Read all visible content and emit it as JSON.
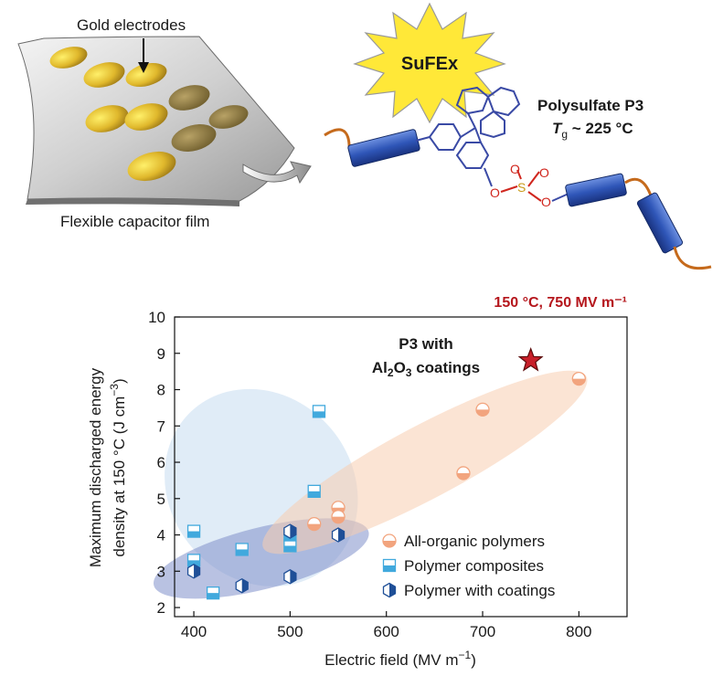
{
  "illustration": {
    "electrode_label": "Gold electrodes",
    "film_label": "Flexible capacitor film",
    "reaction_label": "SuFEx",
    "polymer_name": "Polysulfate P3",
    "tg_symbol": "T",
    "tg_subscript": "g",
    "tg_value": " ~ 225 °C",
    "atom_O": "O",
    "atom_S": "S"
  },
  "chart_data": {
    "type": "scatter",
    "condition_label": "150 °C, 750 MV m⁻¹",
    "xlabel": "Electric field (MV m⁻¹)",
    "ylabel_line1": "Maximum discharged energy",
    "ylabel_line2": "density at 150 °C (J cm⁻³)",
    "xlim": [
      380,
      850
    ],
    "ylim": [
      1.75,
      10
    ],
    "xticks": [
      400,
      500,
      600,
      700,
      800
    ],
    "yticks": [
      2,
      3,
      4,
      5,
      6,
      7,
      8,
      9,
      10
    ],
    "highlight": {
      "label_line1": "P3 with",
      "label_line2": "Al₂O₃ coatings",
      "x": 750,
      "y": 8.8,
      "color": "#c8202a"
    },
    "series": [
      {
        "name": "All-organic polymers",
        "marker": "circle-half",
        "color": "#f2a47e",
        "points": [
          [
            525,
            4.3
          ],
          [
            550,
            4.75
          ],
          [
            550,
            4.5
          ],
          [
            680,
            5.7
          ],
          [
            700,
            7.45
          ],
          [
            800,
            8.3
          ]
        ]
      },
      {
        "name": "Polymer composites",
        "marker": "square-half",
        "color": "#41a9dd",
        "points": [
          [
            400,
            4.1
          ],
          [
            400,
            3.3
          ],
          [
            420,
            2.4
          ],
          [
            450,
            3.6
          ],
          [
            500,
            3.7
          ],
          [
            500,
            4.0
          ],
          [
            525,
            5.2
          ],
          [
            530,
            7.4
          ]
        ]
      },
      {
        "name": "Polymer with coatings",
        "marker": "hexagon-half",
        "color": "#1f4f97",
        "points": [
          [
            400,
            3.0
          ],
          [
            450,
            2.6
          ],
          [
            500,
            2.85
          ],
          [
            500,
            4.1
          ],
          [
            550,
            4.0
          ]
        ]
      }
    ],
    "shaded_regions": [
      {
        "series": "Polymer composites",
        "color": "#c7ddf1"
      },
      {
        "series": "Polymer with coatings",
        "color": "#7f8fca"
      },
      {
        "series": "All-organic polymers",
        "color": "#f8cdb1"
      }
    ]
  }
}
